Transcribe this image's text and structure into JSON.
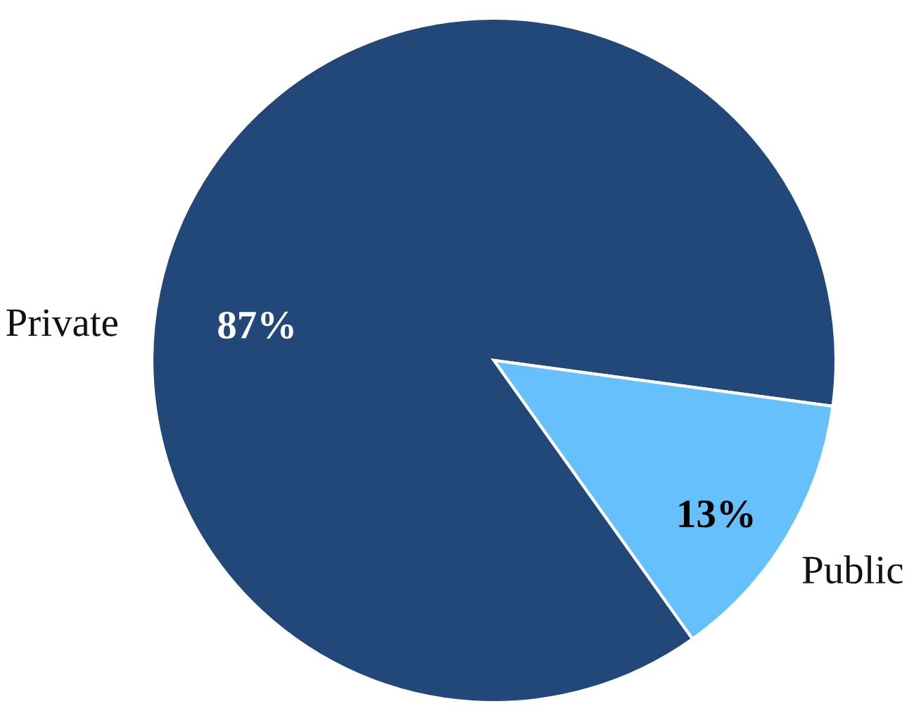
{
  "chart_data": {
    "type": "pie",
    "categories": [
      "Private",
      "Public"
    ],
    "values": [
      87,
      13
    ],
    "colors": [
      "#214879",
      "#66c0fc"
    ],
    "value_labels": [
      "87%",
      "13%"
    ]
  }
}
